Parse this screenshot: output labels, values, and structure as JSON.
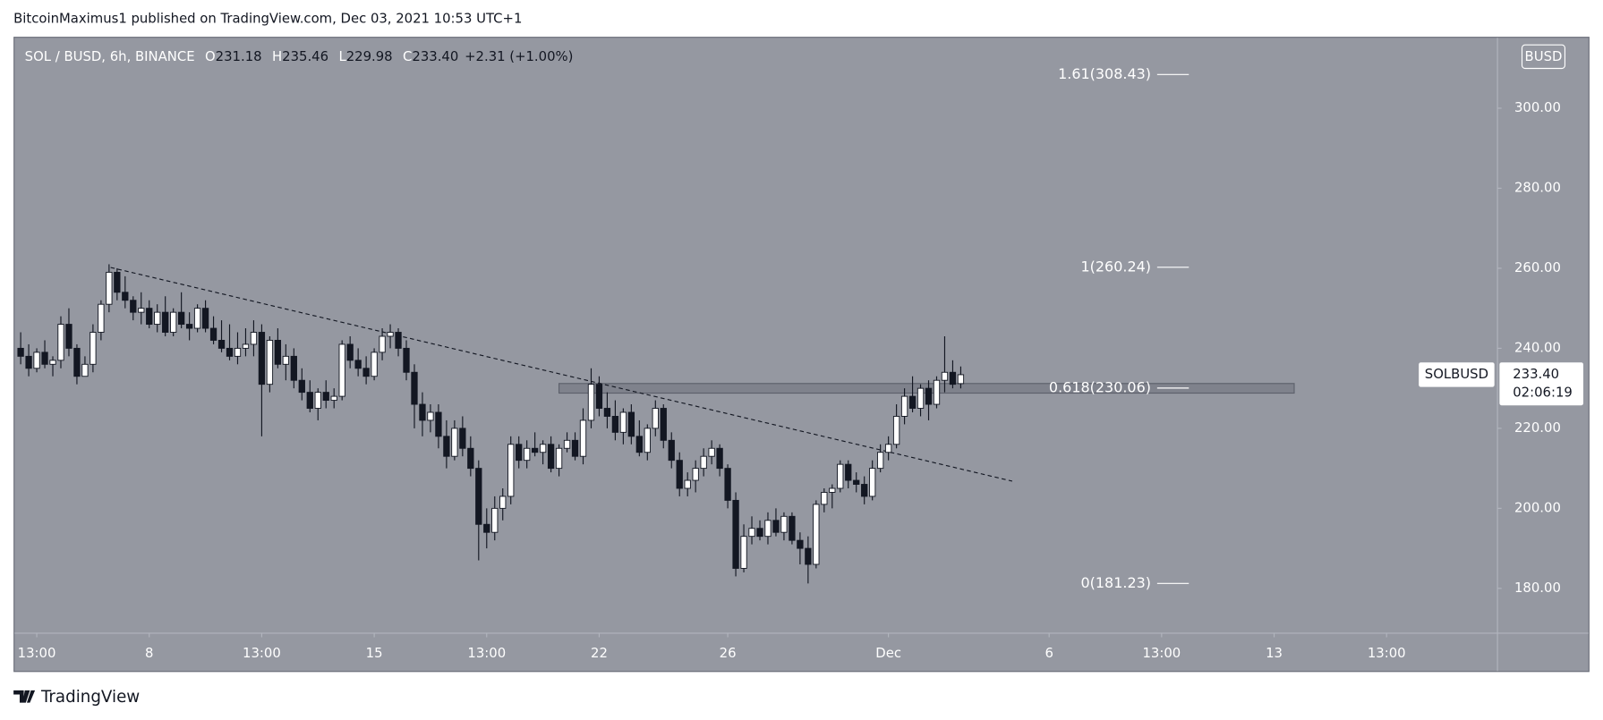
{
  "header": "BitcoinMaximus1 published on TradingView.com, Dec 03, 2021 10:53 UTC+1",
  "footer_logo": "TradingView",
  "chart_data": {
    "type": "candlestick",
    "legend": {
      "symbol": "SOL / BUSD, 6h, BINANCE",
      "fields": [
        {
          "key": "O",
          "value": "231.18"
        },
        {
          "key": "H",
          "value": "235.46"
        },
        {
          "key": "L",
          "value": "229.98"
        },
        {
          "key": "C",
          "value": "233.40"
        }
      ],
      "change": "+2.31 (+1.00%)"
    },
    "currency_button": "BUSD",
    "price_tag": {
      "symbol": "SOLBUSD",
      "price": "233.40",
      "countdown": "02:06:19"
    },
    "up_color": "#ffffff",
    "down_color": "#131722",
    "wick_color": "#131722",
    "background": "#9598a1",
    "ohlc": [
      [
        240,
        244,
        236,
        238
      ],
      [
        238,
        241,
        233,
        235
      ],
      [
        235,
        240,
        234,
        239
      ],
      [
        239,
        242,
        235,
        236
      ],
      [
        236,
        238,
        233,
        237
      ],
      [
        237,
        248,
        235,
        246
      ],
      [
        246,
        250,
        238,
        240
      ],
      [
        240,
        241,
        231,
        233
      ],
      [
        233,
        238,
        233,
        236
      ],
      [
        236,
        246,
        234,
        244
      ],
      [
        244,
        252,
        242,
        251
      ],
      [
        251,
        261,
        249,
        259
      ],
      [
        259,
        260,
        252,
        254
      ],
      [
        254,
        258,
        250,
        252
      ],
      [
        252,
        253,
        247,
        249
      ],
      [
        249,
        254,
        246,
        250
      ],
      [
        250,
        252,
        245,
        246
      ],
      [
        246,
        251,
        244,
        249
      ],
      [
        249,
        253,
        243,
        244
      ],
      [
        244,
        250,
        243,
        249
      ],
      [
        249,
        254,
        245,
        246
      ],
      [
        246,
        249,
        242,
        245
      ],
      [
        245,
        251,
        244,
        250
      ],
      [
        250,
        252,
        244,
        245
      ],
      [
        245,
        248,
        241,
        242
      ],
      [
        242,
        247,
        239,
        240
      ],
      [
        240,
        246,
        237,
        238
      ],
      [
        238,
        244,
        236,
        240
      ],
      [
        240,
        245,
        238,
        241
      ],
      [
        241,
        247,
        238,
        244
      ],
      [
        244,
        246,
        218,
        231
      ],
      [
        231,
        243,
        229,
        242
      ],
      [
        242,
        245,
        235,
        236
      ],
      [
        236,
        241,
        232,
        238
      ],
      [
        238,
        240,
        230,
        232
      ],
      [
        232,
        235,
        227,
        229
      ],
      [
        229,
        232,
        224,
        225
      ],
      [
        225,
        230,
        222,
        229
      ],
      [
        229,
        232,
        225,
        227
      ],
      [
        227,
        230,
        225,
        228
      ],
      [
        228,
        242,
        227,
        241
      ],
      [
        241,
        243,
        235,
        237
      ],
      [
        237,
        240,
        233,
        235
      ],
      [
        235,
        238,
        231,
        233
      ],
      [
        233,
        240,
        232,
        239
      ],
      [
        239,
        245,
        237,
        243
      ],
      [
        243,
        246,
        240,
        244
      ],
      [
        244,
        245,
        238,
        240
      ],
      [
        240,
        242,
        232,
        234
      ],
      [
        234,
        236,
        220,
        226
      ],
      [
        226,
        229,
        218,
        222
      ],
      [
        222,
        226,
        219,
        224
      ],
      [
        224,
        226,
        215,
        218
      ],
      [
        218,
        222,
        210,
        213
      ],
      [
        213,
        222,
        212,
        220
      ],
      [
        220,
        223,
        213,
        215
      ],
      [
        215,
        218,
        208,
        210
      ],
      [
        210,
        212,
        187,
        196
      ],
      [
        196,
        200,
        190,
        194
      ],
      [
        194,
        203,
        192,
        200
      ],
      [
        200,
        205,
        197,
        203
      ],
      [
        203,
        218,
        201,
        216
      ],
      [
        216,
        218,
        210,
        212
      ],
      [
        212,
        217,
        210,
        215
      ],
      [
        215,
        219,
        213,
        214
      ],
      [
        214,
        217,
        211,
        216
      ],
      [
        216,
        218,
        209,
        210
      ],
      [
        210,
        216,
        208,
        215
      ],
      [
        215,
        219,
        214,
        217
      ],
      [
        217,
        219,
        212,
        213
      ],
      [
        213,
        225,
        211,
        222
      ],
      [
        222,
        235,
        220,
        231
      ],
      [
        231,
        233,
        223,
        225
      ],
      [
        225,
        229,
        220,
        223
      ],
      [
        223,
        227,
        217,
        219
      ],
      [
        219,
        225,
        216,
        224
      ],
      [
        224,
        226,
        216,
        218
      ],
      [
        218,
        222,
        213,
        214
      ],
      [
        214,
        221,
        212,
        220
      ],
      [
        220,
        227,
        218,
        225
      ],
      [
        225,
        226,
        215,
        217
      ],
      [
        217,
        219,
        210,
        212
      ],
      [
        212,
        214,
        203,
        205
      ],
      [
        205,
        209,
        203,
        207
      ],
      [
        207,
        212,
        204,
        210
      ],
      [
        210,
        215,
        208,
        213
      ],
      [
        213,
        217,
        211,
        215
      ],
      [
        215,
        216,
        208,
        210
      ],
      [
        210,
        211,
        200,
        202
      ],
      [
        202,
        204,
        183,
        185
      ],
      [
        185,
        196,
        184,
        193
      ],
      [
        193,
        198,
        191,
        195
      ],
      [
        195,
        197,
        192,
        193
      ],
      [
        193,
        199,
        191,
        197
      ],
      [
        197,
        200,
        193,
        194
      ],
      [
        194,
        199,
        192,
        198
      ],
      [
        198,
        199,
        191,
        192
      ],
      [
        192,
        194,
        186,
        190
      ],
      [
        190,
        193,
        181.23,
        186
      ],
      [
        186,
        202,
        185,
        201
      ],
      [
        201,
        205,
        199,
        204
      ],
      [
        204,
        206,
        200,
        205
      ],
      [
        205,
        212,
        204,
        211
      ],
      [
        211,
        212,
        205,
        207
      ],
      [
        207,
        209,
        204,
        206
      ],
      [
        206,
        208,
        201,
        203
      ],
      [
        203,
        212,
        202,
        210
      ],
      [
        210,
        216,
        209,
        214
      ],
      [
        214,
        218,
        212,
        216
      ],
      [
        216,
        226,
        215,
        223
      ],
      [
        223,
        230,
        221,
        228
      ],
      [
        228,
        233,
        224,
        225
      ],
      [
        225,
        231,
        223,
        230
      ],
      [
        230,
        232,
        222,
        226
      ],
      [
        226,
        233,
        225,
        232
      ],
      [
        232,
        243,
        229,
        234
      ],
      [
        234,
        237,
        230,
        231
      ],
      [
        231.18,
        235.46,
        229.98,
        233.4
      ]
    ],
    "xlim": [
      -0.76,
      183.8
    ],
    "xticks": [
      {
        "value": 2,
        "label": "13:00"
      },
      {
        "value": 16,
        "label": "8"
      },
      {
        "value": 30,
        "label": "13:00"
      },
      {
        "value": 44,
        "label": "15"
      },
      {
        "value": 58,
        "label": "13:00"
      },
      {
        "value": 72,
        "label": "22"
      },
      {
        "value": 88,
        "label": "26"
      },
      {
        "value": 108,
        "label": "Dec"
      },
      {
        "value": 128,
        "label": "6"
      },
      {
        "value": 142,
        "label": "13:00"
      },
      {
        "value": 156,
        "label": "13"
      },
      {
        "value": 170,
        "label": "13:00"
      }
    ],
    "ylim": [
      168.8,
      317.6
    ],
    "yticks": [
      {
        "value": 180,
        "label": "180.00"
      },
      {
        "value": 200,
        "label": "200.00"
      },
      {
        "value": 220,
        "label": "220.00"
      },
      {
        "value": 240,
        "label": "240.00"
      },
      {
        "value": 260,
        "label": "260.00"
      },
      {
        "value": 280,
        "label": "280.00"
      },
      {
        "value": 300,
        "label": "300.00"
      }
    ],
    "fib_levels": [
      {
        "label": "1.61(308.43)",
        "value": 308.43
      },
      {
        "label": "1(260.24)",
        "value": 260.24
      },
      {
        "label": "0.618(230.06)",
        "value": 230.06
      },
      {
        "label": "0(181.23)",
        "value": 181.23
      }
    ],
    "zone": {
      "x": [
        67,
        158.5
      ],
      "y": [
        228.8,
        231.2
      ]
    },
    "trendline": {
      "x": [
        11.2,
        123.4
      ],
      "y": [
        260.2,
        206.8
      ]
    }
  }
}
